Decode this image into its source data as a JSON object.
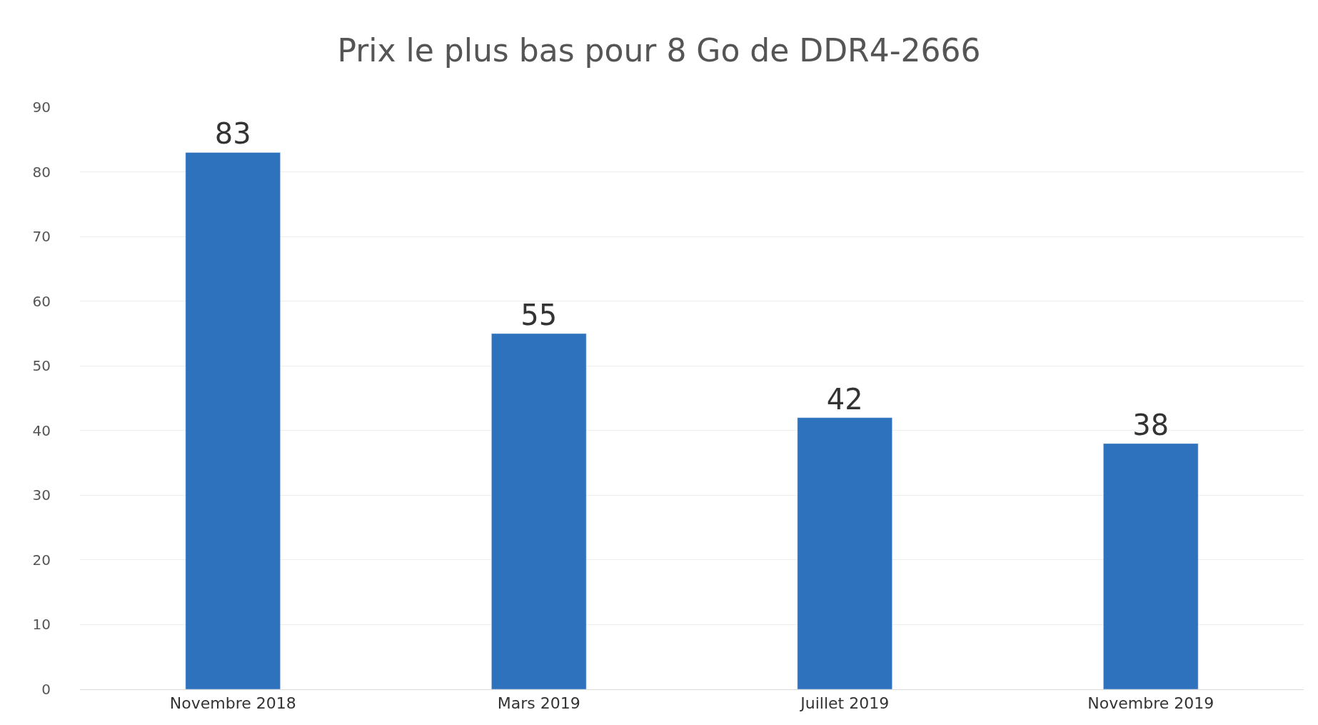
{
  "chart_data": {
    "type": "bar",
    "title": "Prix le plus bas pour 8 Go de DDR4-2666",
    "categories": [
      "Novembre 2018",
      "Mars 2019",
      "Juillet 2019",
      "Novembre 2019"
    ],
    "values": [
      83,
      55,
      42,
      38
    ],
    "color": "#2e72be",
    "ylim": [
      0,
      90
    ],
    "yticks": [
      0,
      10,
      20,
      30,
      40,
      50,
      60,
      70,
      80,
      90
    ],
    "grid": "y",
    "data_labels": true,
    "legend": false
  }
}
